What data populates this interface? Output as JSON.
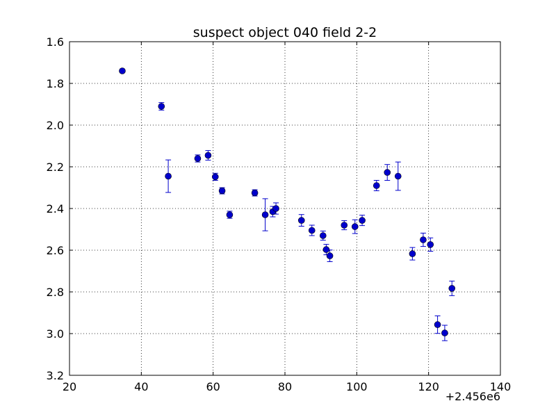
{
  "chart_data": {
    "type": "scatter",
    "title": "suspect object 040 field 2-2",
    "xlabel": "",
    "ylabel": "",
    "x_offset_label": "+2.456e6",
    "xlim": [
      20,
      140
    ],
    "ylim": [
      3.2,
      1.6
    ],
    "y_inverted": true,
    "grid": true,
    "x_ticks": [
      "20",
      "40",
      "60",
      "80",
      "100",
      "120",
      "140"
    ],
    "y_ticks": [
      "1.6",
      "1.8",
      "2.0",
      "2.2",
      "2.4",
      "2.6",
      "2.8",
      "3.0",
      "3.2"
    ],
    "x_tick_values": [
      20,
      40,
      60,
      80,
      100,
      120,
      140
    ],
    "y_tick_values": [
      1.6,
      1.8,
      2.0,
      2.2,
      2.4,
      2.6,
      2.8,
      3.0,
      3.2
    ],
    "marker_color": "#0000cc",
    "points": [
      {
        "x": 34.7,
        "y": 1.74,
        "err": 0.0
      },
      {
        "x": 45.6,
        "y": 1.91,
        "err": 0.018
      },
      {
        "x": 47.5,
        "y": 2.245,
        "err": 0.078
      },
      {
        "x": 55.7,
        "y": 2.16,
        "err": 0.017
      },
      {
        "x": 58.6,
        "y": 2.145,
        "err": 0.023
      },
      {
        "x": 60.6,
        "y": 2.248,
        "err": 0.017
      },
      {
        "x": 62.5,
        "y": 2.315,
        "err": 0.015
      },
      {
        "x": 64.6,
        "y": 2.43,
        "err": 0.017
      },
      {
        "x": 71.6,
        "y": 2.325,
        "err": 0.015
      },
      {
        "x": 74.5,
        "y": 2.43,
        "err": 0.077
      },
      {
        "x": 76.6,
        "y": 2.415,
        "err": 0.025
      },
      {
        "x": 77.5,
        "y": 2.4,
        "err": 0.027
      },
      {
        "x": 84.6,
        "y": 2.457,
        "err": 0.028
      },
      {
        "x": 87.5,
        "y": 2.505,
        "err": 0.025
      },
      {
        "x": 90.6,
        "y": 2.53,
        "err": 0.022
      },
      {
        "x": 91.5,
        "y": 2.597,
        "err": 0.025
      },
      {
        "x": 92.5,
        "y": 2.627,
        "err": 0.028
      },
      {
        "x": 96.5,
        "y": 2.48,
        "err": 0.022
      },
      {
        "x": 99.5,
        "y": 2.487,
        "err": 0.033
      },
      {
        "x": 101.5,
        "y": 2.457,
        "err": 0.025
      },
      {
        "x": 105.5,
        "y": 2.29,
        "err": 0.025
      },
      {
        "x": 108.5,
        "y": 2.227,
        "err": 0.038
      },
      {
        "x": 111.5,
        "y": 2.245,
        "err": 0.068
      },
      {
        "x": 115.5,
        "y": 2.617,
        "err": 0.03
      },
      {
        "x": 118.5,
        "y": 2.55,
        "err": 0.032
      },
      {
        "x": 120.5,
        "y": 2.573,
        "err": 0.032
      },
      {
        "x": 122.5,
        "y": 2.957,
        "err": 0.042
      },
      {
        "x": 124.5,
        "y": 2.997,
        "err": 0.037
      },
      {
        "x": 126.5,
        "y": 2.783,
        "err": 0.035
      }
    ]
  }
}
